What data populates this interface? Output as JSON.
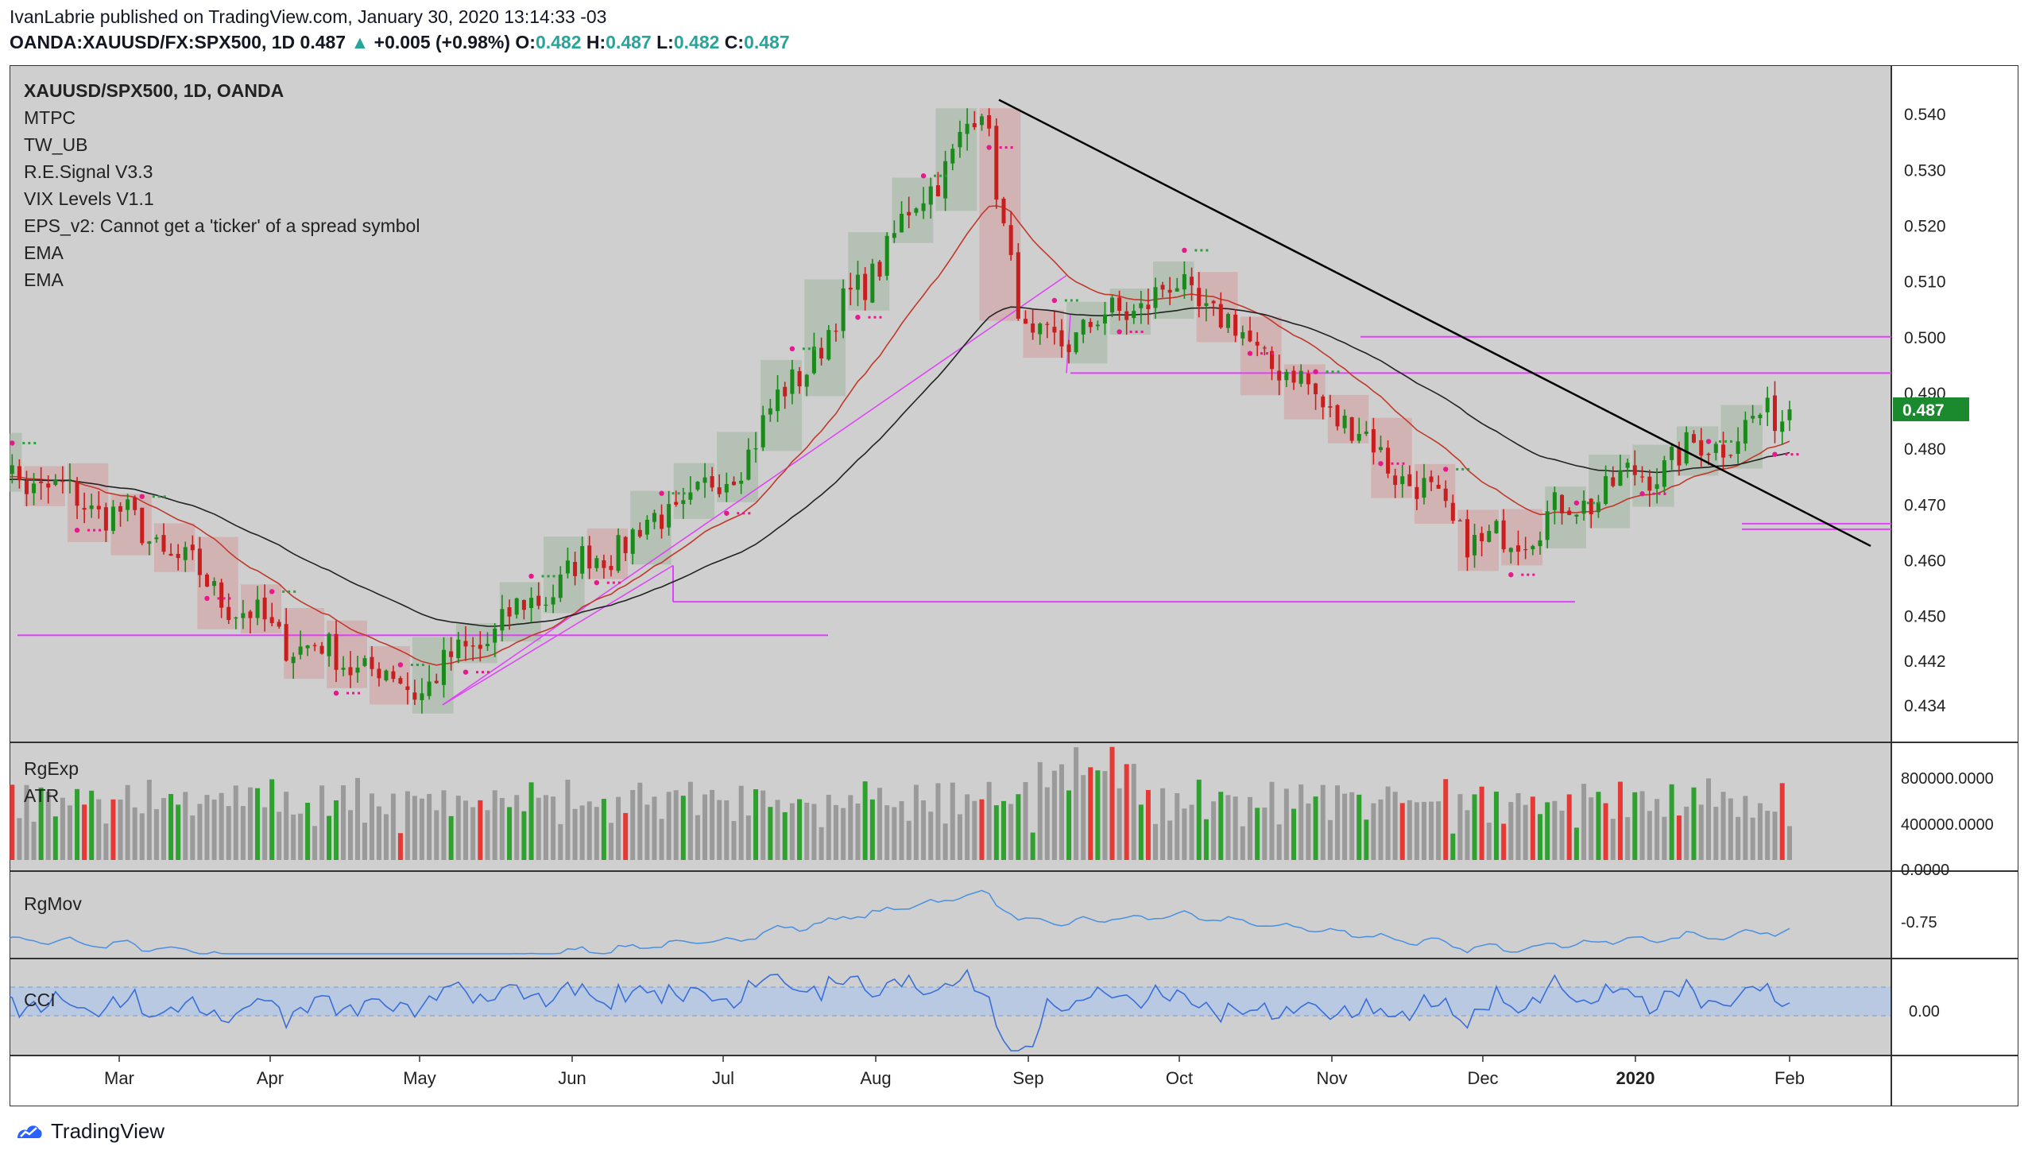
{
  "header": {
    "published_line": "IvanLabrie published on TradingView.com, January 30, 2020 13:14:33 -03",
    "symbol": "OANDA:XAUUSD/FX:SPX500, 1D",
    "last": "0.487",
    "change": "+0.005 (+0.98%)",
    "o_label": "O:",
    "o": "0.482",
    "h_label": "H:",
    "h": "0.487",
    "l_label": "L:",
    "l": "0.482",
    "c_label": "C:",
    "c": "0.487"
  },
  "legend": [
    "XAUUSD/SPX500, 1D, OANDA",
    "MTPC",
    "TW_UB",
    "R.E.Signal V3.3",
    "VIX Levels V1.1",
    "EPS_v2: Cannot get a 'ticker' of a spread symbol",
    "EMA",
    "EMA"
  ],
  "panes": {
    "volume_labels": [
      "RgExp",
      "ATR"
    ],
    "rgmov_label": "RgMov",
    "cci_label": "CCI"
  },
  "colors": {
    "bg": "#ffffff",
    "pane_bg": "#cfcfcf",
    "up": "#1a8a1a",
    "down": "#c81e1e",
    "ema_fast": "#c0392b",
    "ema_slow": "#222222",
    "magenta": "#e040fb",
    "rgmov": "#4a90e2",
    "cci": "#3a6fd8",
    "price_tag": "#1b8a2e"
  },
  "chart_data": {
    "type": "candlestick",
    "symbol": "XAUUSD/SPX500",
    "timeframe": "1D",
    "x_ticks": [
      "Mar",
      "Apr",
      "May",
      "Jun",
      "Jul",
      "Aug",
      "Sep",
      "Oct",
      "Nov",
      "Dec",
      "2020",
      "Feb"
    ],
    "price_axis_ticks": [
      "0.540",
      "0.530",
      "0.520",
      "0.510",
      "0.500",
      "0.490",
      "0.480",
      "0.470",
      "0.460",
      "0.450",
      "0.442",
      "0.434"
    ],
    "last_price_tag": "0.487",
    "approx_close_path": [
      {
        "t": "Feb",
        "v": 0.478
      },
      {
        "t": "Mar",
        "v": 0.468
      },
      {
        "t": "Apr",
        "v": 0.447
      },
      {
        "t": "May",
        "v": 0.437
      },
      {
        "t": "Jun",
        "v": 0.458
      },
      {
        "t": "Jul",
        "v": 0.474
      },
      {
        "t": "Aug",
        "v": 0.513
      },
      {
        "t": "late Aug",
        "v": 0.541
      },
      {
        "t": "Sep",
        "v": 0.497
      },
      {
        "t": "Oct",
        "v": 0.509
      },
      {
        "t": "Nov",
        "v": 0.487
      },
      {
        "t": "Dec",
        "v": 0.462
      },
      {
        "t": "2020",
        "v": 0.475
      },
      {
        "t": "Feb",
        "v": 0.487
      }
    ],
    "volume_axis_ticks": [
      "800000.0000",
      "400000.0000",
      "0.0000"
    ],
    "rgmov_axis_ticks": [
      "-0.75"
    ],
    "cci_axis_ticks": [
      "0.00"
    ]
  },
  "footer": {
    "brand": "TradingView"
  }
}
